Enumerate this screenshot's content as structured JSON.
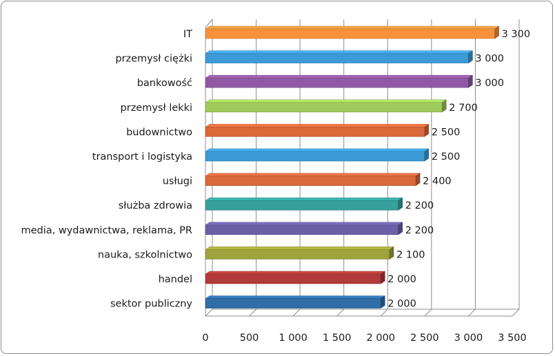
{
  "chart_data": {
    "type": "bar",
    "orientation": "horizontal",
    "style": "3d",
    "categories": [
      "IT",
      "przemysł ciężki",
      "bankowość",
      "przemysł lekki",
      "budownictwo",
      "transport i logistyka",
      "usługi",
      "służba zdrowia",
      "media, wydawnictwa, reklama, PR",
      "nauka, szkolnictwo",
      "handel",
      "sektor publiczny"
    ],
    "values": [
      3300,
      3000,
      3000,
      2700,
      2500,
      2500,
      2400,
      2200,
      2200,
      2100,
      2000,
      2000
    ],
    "value_labels": [
      "3 300",
      "3 000",
      "3 000",
      "2 700",
      "2 500",
      "2 500",
      "2 400",
      "2 200",
      "2 200",
      "2 100",
      "2 000",
      "2 000"
    ],
    "colors": [
      "#f7923a",
      "#3c9ad6",
      "#8f5aa3",
      "#9fcb5a",
      "#d9683a",
      "#3c9ad6",
      "#d9683a",
      "#35a09c",
      "#6b5fa8",
      "#9fa33c",
      "#b13a3a",
      "#2f6ea8"
    ],
    "xlim": [
      0,
      3500
    ],
    "xticks": [
      0,
      500,
      1000,
      1500,
      2000,
      2500,
      3000,
      3500
    ],
    "xtick_labels": [
      "0",
      "500",
      "1 000",
      "1 500",
      "2 000",
      "2 500",
      "3 000",
      "3 500"
    ],
    "grid": "vertical",
    "legend": "none",
    "title": "",
    "xlabel": "",
    "ylabel": ""
  }
}
